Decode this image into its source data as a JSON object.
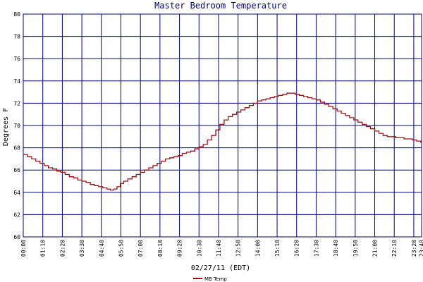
{
  "chart_data": {
    "type": "line",
    "title": "Master Bedroom Temperature",
    "xlabel": "02/27/11 (EDT)",
    "ylabel": "Degrees F",
    "ylim": [
      60,
      80
    ],
    "y_ticks": [
      60,
      62,
      64,
      66,
      68,
      70,
      72,
      74,
      76,
      78,
      80
    ],
    "x_unit": "hours",
    "xlim": [
      0,
      23.8
    ],
    "x_ticks": [
      {
        "x": 0,
        "label": "00:00"
      },
      {
        "x": 1.1667,
        "label": "01:10"
      },
      {
        "x": 2.3333,
        "label": "02:20"
      },
      {
        "x": 3.5,
        "label": "03:30"
      },
      {
        "x": 4.6667,
        "label": "04:40"
      },
      {
        "x": 5.8333,
        "label": "05:50"
      },
      {
        "x": 7.0,
        "label": "07:00"
      },
      {
        "x": 8.1667,
        "label": "08:10"
      },
      {
        "x": 9.3333,
        "label": "09:20"
      },
      {
        "x": 10.5,
        "label": "10:30"
      },
      {
        "x": 11.6667,
        "label": "11:40"
      },
      {
        "x": 12.8333,
        "label": "12:50"
      },
      {
        "x": 14.0,
        "label": "14:00"
      },
      {
        "x": 15.1667,
        "label": "15:10"
      },
      {
        "x": 16.3333,
        "label": "16:20"
      },
      {
        "x": 17.5,
        "label": "17:30"
      },
      {
        "x": 18.6667,
        "label": "18:40"
      },
      {
        "x": 19.8333,
        "label": "19:50"
      },
      {
        "x": 21.0,
        "label": "21:00"
      },
      {
        "x": 22.1667,
        "label": "22:10"
      },
      {
        "x": 23.3333,
        "label": "23:20"
      },
      {
        "x": 23.8,
        "label": "23:48"
      }
    ],
    "grid": true,
    "legend_position": "bottom-center",
    "colors": {
      "series": "#a01010",
      "grid": "#000080",
      "title": "#000080"
    },
    "series": [
      {
        "name": "MB Temp",
        "x": [
          0,
          0.25,
          0.5,
          0.75,
          1.0,
          1.25,
          1.5,
          1.75,
          2.0,
          2.25,
          2.5,
          2.75,
          3.0,
          3.25,
          3.5,
          3.75,
          4.0,
          4.25,
          4.5,
          4.75,
          5.0,
          5.2,
          5.4,
          5.6,
          5.8,
          6.0,
          6.25,
          6.5,
          6.75,
          7.0,
          7.25,
          7.5,
          7.75,
          8.0,
          8.25,
          8.5,
          8.75,
          9.0,
          9.25,
          9.5,
          9.75,
          10.0,
          10.25,
          10.5,
          10.75,
          11.0,
          11.25,
          11.5,
          11.75,
          12.0,
          12.25,
          12.5,
          12.75,
          13.0,
          13.25,
          13.5,
          13.75,
          14.0,
          14.25,
          14.5,
          14.75,
          15.0,
          15.25,
          15.5,
          15.75,
          16.0,
          16.25,
          16.5,
          16.75,
          17.0,
          17.25,
          17.5,
          17.75,
          18.0,
          18.25,
          18.5,
          18.75,
          19.0,
          19.25,
          19.5,
          19.75,
          20.0,
          20.25,
          20.5,
          20.75,
          21.0,
          21.25,
          21.5,
          21.75,
          22.0,
          22.25,
          22.5,
          22.75,
          23.0,
          23.25,
          23.5,
          23.75,
          23.8
        ],
        "values": [
          67.4,
          67.2,
          67.0,
          66.8,
          66.6,
          66.4,
          66.2,
          66.1,
          65.9,
          65.8,
          65.6,
          65.4,
          65.3,
          65.1,
          65.0,
          64.9,
          64.7,
          64.6,
          64.5,
          64.4,
          64.3,
          64.2,
          64.3,
          64.5,
          64.8,
          65.0,
          65.2,
          65.4,
          65.6,
          65.8,
          66.0,
          66.2,
          66.4,
          66.6,
          66.8,
          67.0,
          67.1,
          67.2,
          67.3,
          67.5,
          67.6,
          67.7,
          67.9,
          68.1,
          68.3,
          68.7,
          69.1,
          69.6,
          70.1,
          70.5,
          70.8,
          71.0,
          71.2,
          71.4,
          71.6,
          71.8,
          72.0,
          72.2,
          72.3,
          72.4,
          72.5,
          72.6,
          72.7,
          72.8,
          72.9,
          72.9,
          72.8,
          72.7,
          72.6,
          72.5,
          72.4,
          72.3,
          72.1,
          71.9,
          71.7,
          71.5,
          71.3,
          71.1,
          70.9,
          70.7,
          70.5,
          70.3,
          70.1,
          69.9,
          69.7,
          69.5,
          69.3,
          69.1,
          69.0,
          69.0,
          68.9,
          68.9,
          68.8,
          68.8,
          68.7,
          68.6,
          68.5,
          68.5
        ]
      }
    ]
  }
}
